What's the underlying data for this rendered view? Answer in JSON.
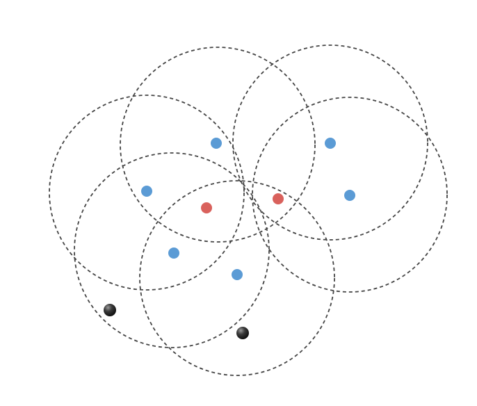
{
  "diagram": {
    "circles": [
      {
        "id": "circle-upper-left",
        "role": "dashed-range"
      },
      {
        "id": "circle-upper-right",
        "role": "dashed-range"
      },
      {
        "id": "circle-mid-left",
        "role": "dashed-range"
      },
      {
        "id": "circle-mid-right",
        "role": "dashed-range"
      },
      {
        "id": "circle-lower-left",
        "role": "dashed-range"
      },
      {
        "id": "circle-lower-center",
        "role": "dashed-range"
      }
    ],
    "points": [
      {
        "id": "blue-point-1",
        "kind": "blue"
      },
      {
        "id": "blue-point-2",
        "kind": "blue"
      },
      {
        "id": "blue-point-3",
        "kind": "blue"
      },
      {
        "id": "blue-point-4",
        "kind": "blue"
      },
      {
        "id": "blue-point-5",
        "kind": "blue"
      },
      {
        "id": "blue-point-6",
        "kind": "blue"
      },
      {
        "id": "red-point-1",
        "kind": "red"
      },
      {
        "id": "red-point-2",
        "kind": "red"
      },
      {
        "id": "black-point-1",
        "kind": "black"
      },
      {
        "id": "black-point-2",
        "kind": "black"
      }
    ]
  },
  "colors": {
    "blue": "#5b9bd5",
    "red": "#d9615c",
    "black": "#333333",
    "circle_stroke": "#444444"
  }
}
